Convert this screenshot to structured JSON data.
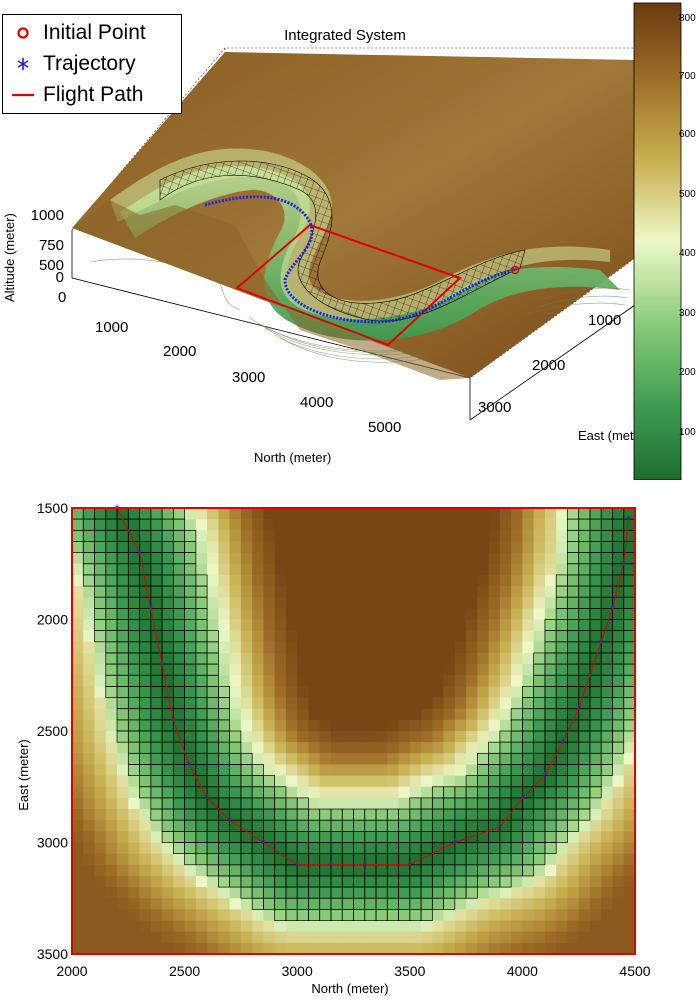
{
  "colors": {
    "terrain_low": "#1e6e2e",
    "terrain_mid": "#eef8c8",
    "terrain_high": "#6b3a10",
    "initial_point": "#e00000",
    "trajectory": "#2020e0",
    "flight_path": "#e00000",
    "grid_mesh": "#000000"
  },
  "legend": [
    {
      "label": "Initial Point",
      "marker": "circle-icon"
    },
    {
      "label": "Trajectory",
      "marker": "asterisk-icon"
    },
    {
      "label": "Flight Path",
      "marker": "line-icon"
    }
  ],
  "chart_data": [
    {
      "type": "surface3d",
      "title": "Integrated System",
      "xlabel": "North (meter)",
      "ylabel": "East (meter)",
      "zlabel": "Altitude (meter)",
      "x_ticks": [
        "1000",
        "2000",
        "3000",
        "4000",
        "5000"
      ],
      "y_ticks": [
        "1000",
        "2000",
        "3000"
      ],
      "z_ticks": [
        "1000",
        "750",
        "500",
        "0"
      ],
      "x_origin_label": "0",
      "colorbar": {
        "ticks": [
          "800",
          "700",
          "600",
          "500",
          "400",
          "300",
          "200",
          "100"
        ],
        "range": [
          30,
          820
        ]
      },
      "series": [
        {
          "name": "Initial Point"
        },
        {
          "name": "Trajectory"
        },
        {
          "name": "Flight Path"
        }
      ]
    },
    {
      "type": "heatmap",
      "xlabel": "North (meter)",
      "ylabel": "East (meter)",
      "xlim": [
        2000,
        4500
      ],
      "ylim": [
        3500,
        1500
      ],
      "x_ticks": [
        "2000",
        "2500",
        "3000",
        "3500",
        "4000",
        "4500"
      ],
      "y_ticks": [
        "1500",
        "2000",
        "2500",
        "3000",
        "3500"
      ],
      "trajectory": {
        "x": [
          2200,
          2300,
          2350,
          2400,
          2450,
          2520,
          2600,
          2700,
          2850,
          3000,
          3150,
          3300,
          3500,
          3700,
          3900,
          4000,
          4100,
          4180,
          4250,
          4300,
          4350,
          4400,
          4450,
          4470
        ],
        "y": [
          1500,
          1700,
          1950,
          2200,
          2450,
          2650,
          2800,
          2900,
          3000,
          3100,
          3100,
          3100,
          3100,
          3000,
          2930,
          2800,
          2700,
          2550,
          2400,
          2250,
          2100,
          1950,
          1750,
          1550
        ]
      },
      "corridor_halfwidth": [
        130,
        250
      ]
    }
  ]
}
